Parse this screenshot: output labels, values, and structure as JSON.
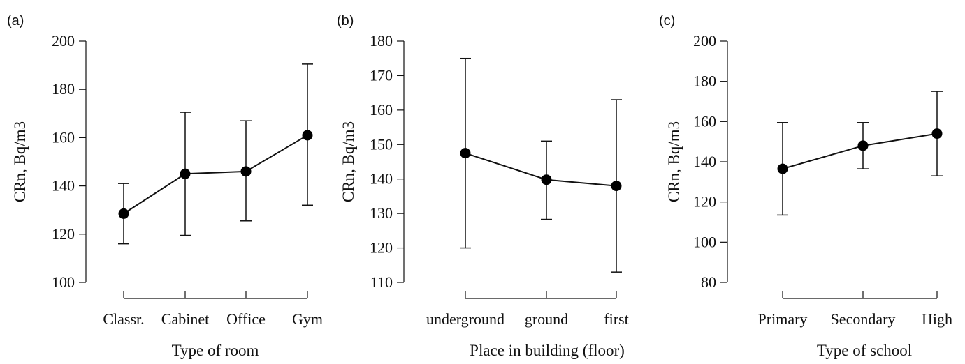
{
  "chart_data": [
    {
      "type": "line",
      "panel_label": "(a)",
      "xlabel": "Type of room",
      "ylabel": "CRn, Bq/m3",
      "ylim": [
        100,
        200
      ],
      "yticks": [
        100,
        120,
        140,
        160,
        180,
        200
      ],
      "categories": [
        "Classr.",
        "Cabinet",
        "Office",
        "Gym"
      ],
      "values": [
        128.5,
        145,
        146,
        161
      ],
      "error_low": [
        116,
        119.5,
        125.5,
        132
      ],
      "error_high": [
        141,
        170.5,
        167,
        190.5
      ],
      "grid": false
    },
    {
      "type": "line",
      "panel_label": "(b)",
      "xlabel": "Place in building (floor)",
      "ylabel": "CRn, Bq/m3",
      "ylim": [
        110,
        180
      ],
      "yticks": [
        110,
        120,
        130,
        140,
        150,
        160,
        170,
        180
      ],
      "categories": [
        "underground",
        "ground",
        "first"
      ],
      "values": [
        147.5,
        139.8,
        138
      ],
      "error_low": [
        120,
        128.3,
        113
      ],
      "error_high": [
        175,
        151,
        163
      ],
      "grid": false
    },
    {
      "type": "line",
      "panel_label": "(c)",
      "xlabel": "Type of school",
      "ylabel": "CRn, Bq/m3",
      "ylim": [
        80,
        200
      ],
      "yticks": [
        80,
        100,
        120,
        140,
        160,
        180,
        200
      ],
      "categories": [
        "Primary",
        "Secondary",
        "High"
      ],
      "values": [
        136.5,
        148,
        154
      ],
      "error_low": [
        113.5,
        136.5,
        133
      ],
      "error_high": [
        159.5,
        159.5,
        175
      ],
      "grid": false
    }
  ]
}
